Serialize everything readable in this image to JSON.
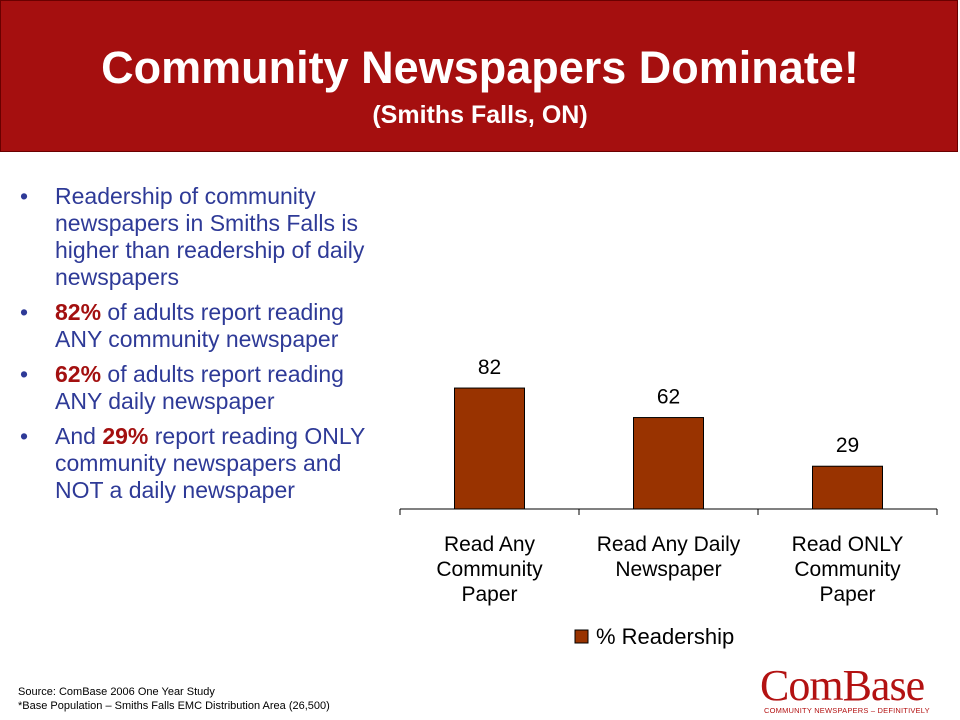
{
  "header": {
    "title": "Community Newspapers Dominate!",
    "subtitle": "(Smiths Falls, ON)",
    "background_color": "#a50f0f"
  },
  "bullets": [
    {
      "pre": "",
      "highlight": "",
      "post": "Readership of community newspapers in Smiths Falls is higher than readership of daily newspapers"
    },
    {
      "pre": "",
      "highlight": "82%",
      "post": " of adults report reading ANY community newspaper"
    },
    {
      "pre": "",
      "highlight": "62%",
      "post": " of adults report reading ANY daily newspaper"
    },
    {
      "pre": "And ",
      "highlight": "29%",
      "post": " report reading ONLY community newspapers and NOT a daily newspaper"
    }
  ],
  "source": {
    "line1": "Source:  ComBase 2006 One Year Study",
    "line2": "*Base Population  –  Smiths Falls EMC Distribution Area (26,500)"
  },
  "logo": {
    "name": "ComBase",
    "tagline": "COMMUNITY NEWSPAPERS – DEFINITIVELY"
  },
  "chart_data": {
    "type": "bar",
    "categories": [
      [
        "Read Any",
        "Community",
        "Paper"
      ],
      [
        "Read Any Daily",
        "Newspaper"
      ],
      [
        "Read ONLY",
        "Community",
        "Paper"
      ]
    ],
    "series": [
      {
        "name": "% Readership",
        "values": [
          82,
          62,
          29
        ],
        "color": "#993300"
      }
    ],
    "data_labels": [
      "82",
      "62",
      "29"
    ],
    "ylim": [
      0,
      100
    ],
    "grid": false,
    "legend": "bottom"
  }
}
